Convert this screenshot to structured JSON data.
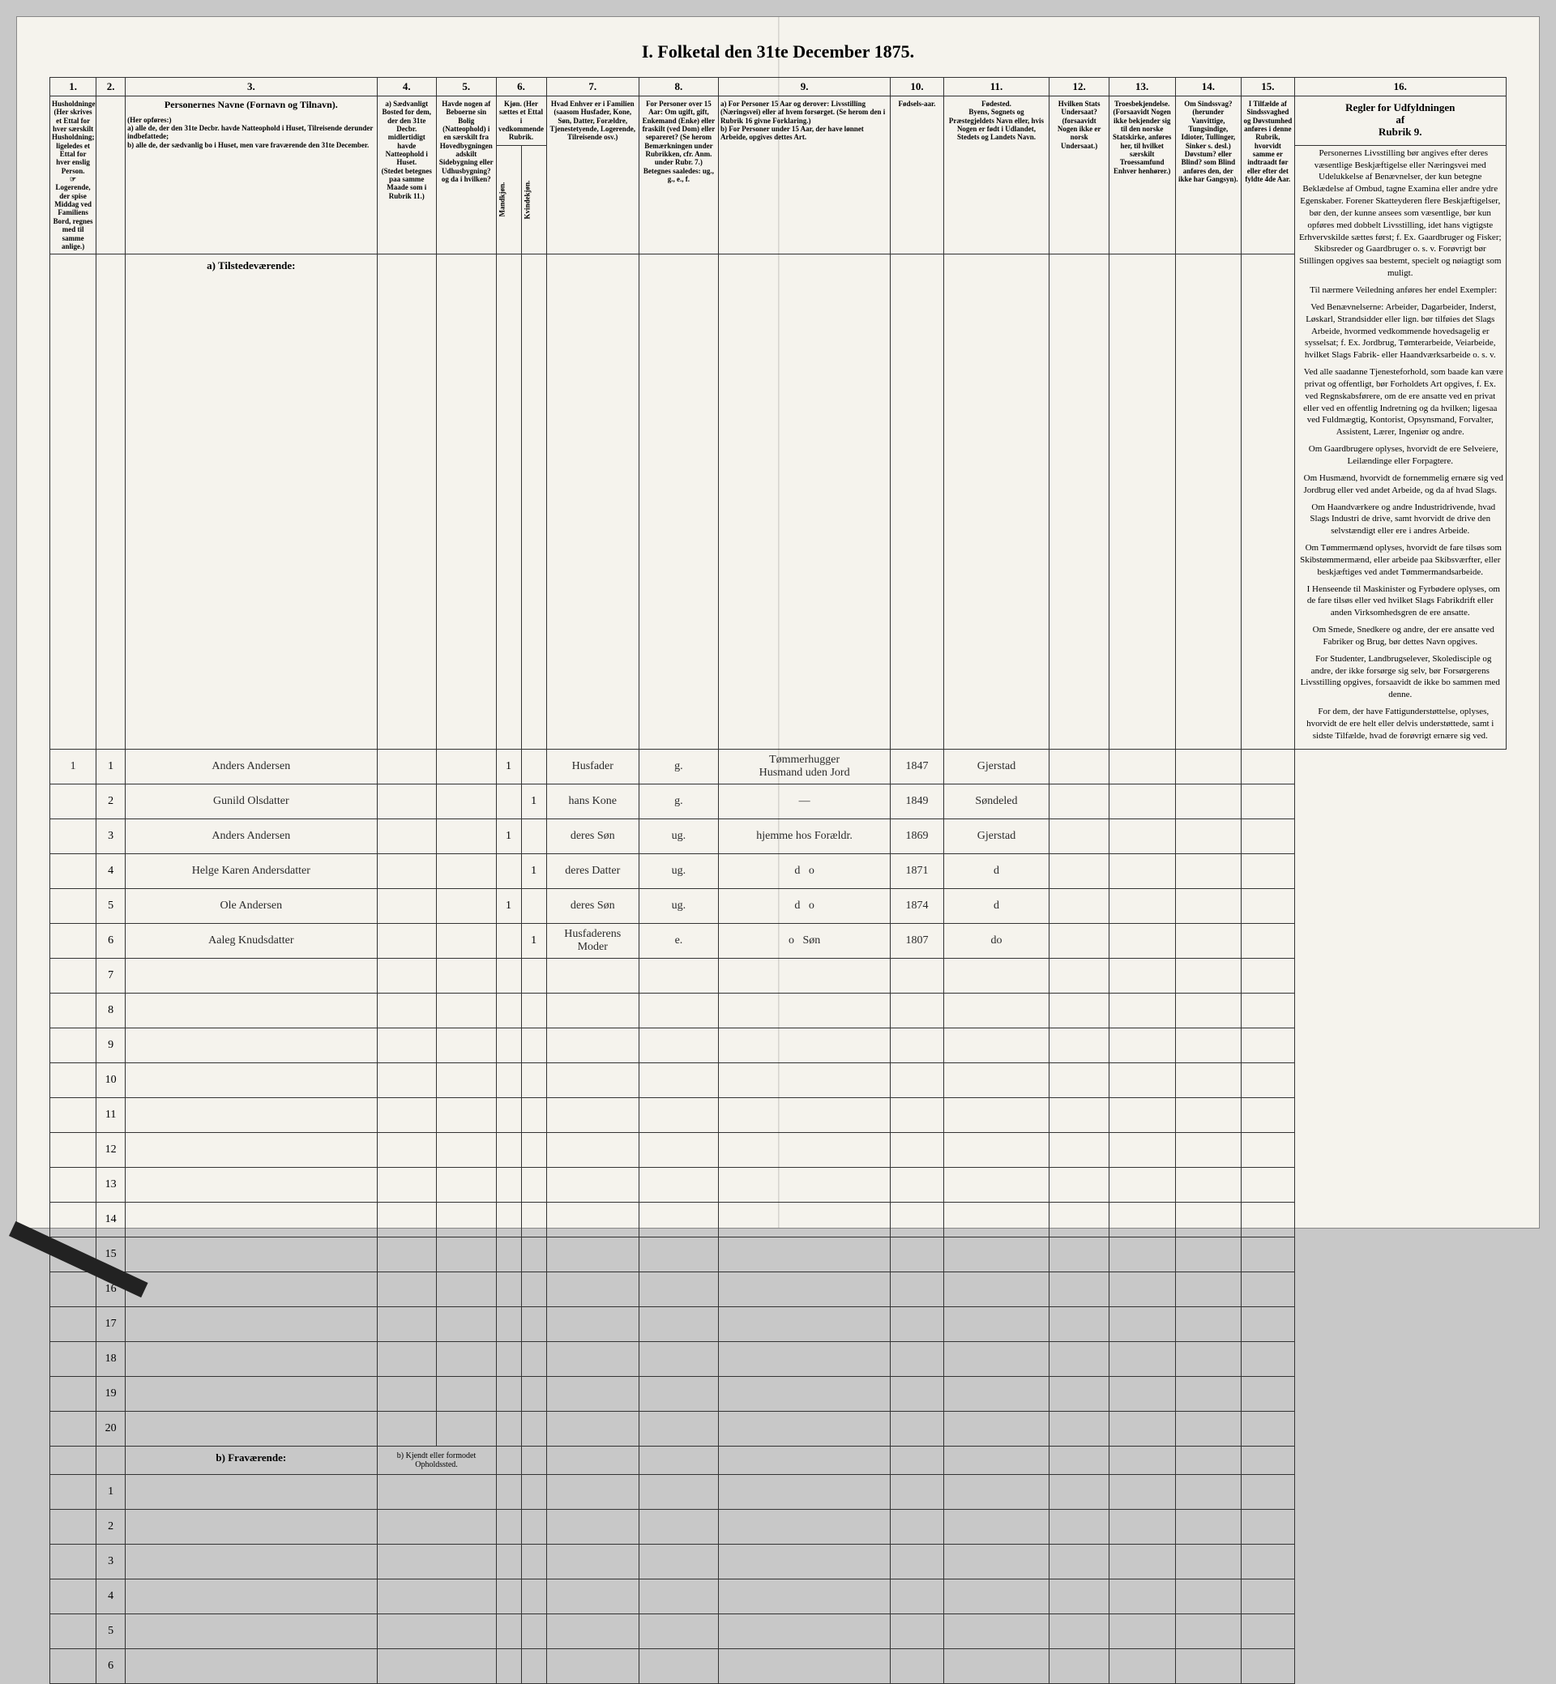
{
  "title": "I.  Folketal den 31te December 1875.",
  "columns": [
    "1.",
    "2.",
    "3.",
    "4.",
    "5.",
    "6.",
    "7.",
    "8.",
    "9.",
    "10.",
    "11.",
    "12.",
    "13.",
    "14.",
    "15.",
    "16."
  ],
  "col_widths_pct": [
    3.5,
    2.2,
    19,
    4.5,
    4.5,
    3.8,
    7,
    6,
    13,
    4,
    8,
    4.5,
    5,
    5,
    4,
    16
  ],
  "headers": {
    "c1": "Husholdninger.\n(Her skrives et Ettal for hver særskilt Husholdning; ligeledes et Ettal for hver enslig Person.\n☞ Logerende, der spise Middag ved Familiens Bord, regnes med til samme anlige.)",
    "c3_title": "Personernes Navne (Fornavn og Tilnavn).",
    "c3_sub": "(Her opføres:)\na) alle de, der den 31te Decbr. havde Natteophold i Huset, Tilreisende derunder indbefattede;\nb) alle de, der sædvanlig bo i Huset, men vare fraværende den 31te December.",
    "c4": "a) Sædvanligt Bosted for dem, der den 31te Decbr. midlertidigt havde Natteophold i Huset.\n(Stedet betegnes paa samme Maade som i Rubrik 11.)",
    "c5": "Havde nogen af Beboerne sin Bolig (Natteophold) i en særskilt fra Hovedbygningen adskilt Sidebygning eller Udhusbygning?\nog da i hvilken?",
    "c6": "Kjøn. (Her sættes et Ettal i vedkommende Rubrik.",
    "c6a": "Mandkjøn.",
    "c6b": "Kvindekjøn.",
    "c7": "Hvad Enhver er i Familien\n(saasom Husfader, Kone, Søn, Datter, Forældre, Tjenestetyende, Logerende, Tilreisende osv.)",
    "c8": "For Personer over 15 Aar: Om ugift, gift, Enkemand (Enke) eller fraskilt (ved Dom) eller separeret? (Se herom Bemærkningen under Rubrikken, cfr. Anm. under Rubr. 7.)\nBetegnes saaledes: ug., g., e., f.",
    "c9": "a) For Personer 15 Aar og derover: Livsstilling (Næringsvei) eller af hvem forsørget. (Se herom den i Rubrik 16 givne Forklaring.)\nb) For Personer under 15 Aar, der have lønnet Arbeide, opgives dettes Art.",
    "c10": "Fødsels-aar.",
    "c11": "Fødested.\nByens, Sognets og Præstegjeldets Navn eller, hvis Nogen er født i Udlandet, Stedets og Landets Navn.",
    "c12": "Hvilken Stats Undersaat?\n(forsaavidt Nogen ikke er norsk Undersaat.)",
    "c13": "Troesbekjendelse.\n(Forsaavidt Nogen ikke bekjender sig til den norske Statskirke, anføres her, til hvilket særskilt Troessamfund Enhver henhører.)",
    "c14": "Om Sindssvag? (herunder Vanvittige, Tungsindige, Idioter, Tullinger, Sinker s. desl.)\nDøvstum? eller Blind? som Blind anføres den, der ikke har Gangsyn).",
    "c15": "I Tilfælde af Sindssvaghed og Døvstumhed anføres i denne Rubrik, hvorvidt samme er indtraadt før eller efter det fyldte 4de Aar.",
    "c16_title": "Regler for Udfyldningen\naf\nRubrik 9."
  },
  "section_a": "a) Tilstedeværende:",
  "section_b": "b) Fraværende:",
  "section_b_col4": "b) Kjendt eller formodet Opholdssted.",
  "rows": [
    {
      "n": "1",
      "hh": "1",
      "name": "Anders Andersen",
      "m": "1",
      "k": "",
      "fam": "Husfader",
      "ms": "g.",
      "occ": "Tømmerhugger\nHusmand uden Jord",
      "yr": "1847",
      "place": "Gjerstad"
    },
    {
      "n": "2",
      "hh": "",
      "name": "Gunild Olsdatter",
      "m": "",
      "k": "1",
      "fam": "hans Kone",
      "ms": "g.",
      "occ": "—",
      "yr": "1849",
      "place": "Søndeled"
    },
    {
      "n": "3",
      "hh": "",
      "name": "Anders Andersen",
      "m": "1",
      "k": "",
      "fam": "deres Søn",
      "ms": "ug.",
      "occ": "hjemme hos Forældr.",
      "yr": "1869",
      "place": "Gjerstad"
    },
    {
      "n": "4",
      "hh": "",
      "name": "Helge Karen Andersdatter",
      "m": "",
      "k": "1",
      "fam": "deres Datter",
      "ms": "ug.",
      "occ": "d   o",
      "yr": "1871",
      "place": "d"
    },
    {
      "n": "5",
      "hh": "",
      "name": "Ole Andersen",
      "m": "1",
      "k": "",
      "fam": "deres Søn",
      "ms": "ug.",
      "occ": "d   o",
      "yr": "1874",
      "place": "d"
    },
    {
      "n": "6",
      "hh": "",
      "name": "Aaleg Knudsdatter",
      "m": "",
      "k": "1",
      "fam": "Husfaderens Moder",
      "ms": "e.",
      "occ": "o   Søn",
      "yr": "1807",
      "place": "do"
    }
  ],
  "empty_rows_a": [
    "7",
    "8",
    "9",
    "10",
    "11",
    "12",
    "13",
    "14",
    "15",
    "16",
    "17",
    "18",
    "19",
    "20"
  ],
  "empty_rows_b": [
    "1",
    "2",
    "3",
    "4",
    "5",
    "6"
  ],
  "instructions": [
    "Personernes Livsstilling bør angives efter deres væsentlige Beskjæftigelse eller Næringsvei med Udelukkelse af Benævnelser, der kun betegne Beklædelse af Ombud, tagne Examina eller andre ydre Egenskaber. Forener Skatteyderen flere Beskjæftigelser, bør den, der kunne ansees som væsentlige, bør kun opføres med dobbelt Livsstilling, idet hans vigtigste Erhvervskilde sættes først; f. Ex. Gaardbruger og Fisker; Skibsreder og Gaardbruger o. s. v. Forøvrigt bør Stillingen opgives saa bestemt, specielt og nøiagtigt som muligt.",
    "Til nærmere Veiledning anføres her endel Exempler:",
    "Ved Benævnelserne: Arbeider, Dagarbeider, Inderst, Løskarl, Strandsidder eller lign. bør tilføies det Slags Arbeide, hvormed vedkommende hovedsagelig er sysselsat; f. Ex. Jordbrug, Tømterarbeide, Veiarbeide, hvilket Slags Fabrik- eller Haandværksarbeide o. s. v.",
    "Ved alle saadanne Tjenesteforhold, som baade kan være privat og offentligt, bør Forholdets Art opgives, f. Ex. ved Regnskabsførere, om de ere ansatte ved en privat eller ved en offentlig Indretning og da hvilken; ligesaa ved Fuldmægtig, Kontorist, Opsynsmand, Forvalter, Assistent, Lærer, Ingeniør og andre.",
    "Om Gaardbrugere oplyses, hvorvidt de ere Selveiere, Leilændinge eller Forpagtere.",
    "Om Husmænd, hvorvidt de fornemmelig ernære sig ved Jordbrug eller ved andet Arbeide, og da af hvad Slags.",
    "Om Haandværkere og andre Industridrivende, hvad Slags Industri de drive, samt hvorvidt de drive den selvstændigt eller ere i andres Arbeide.",
    "Om Tømmermænd oplyses, hvorvidt de fare tilsøs som Skibstømmermænd, eller arbeide paa Skibsværfter, eller beskjæftiges ved andet Tømmermandsarbeide.",
    "I Henseende til Maskinister og Fyrbødere oplyses, om de fare tilsøs eller ved hvilket Slags Fabrikdrift eller anden Virksomhedsgren de ere ansatte.",
    "Om Smede, Snedkere og andre, der ere ansatte ved Fabriker og Brug, bør dettes Navn opgives.",
    "For Studenter, Landbrugselever, Skoledisciple og andre, der ikke forsørge sig selv, bør Forsørgerens Livsstilling opgives, forsaavidt de ikke bo sammen med denne.",
    "For dem, der have Fattigunderstøttelse, oplyses, hvorvidt de ere helt eller delvis understøttede, samt i sidste Tilfælde, hvad de forøvrigt ernære sig ved."
  ],
  "colors": {
    "paper": "#f5f3ed",
    "ink": "#2a2a2a",
    "border": "#333333"
  }
}
